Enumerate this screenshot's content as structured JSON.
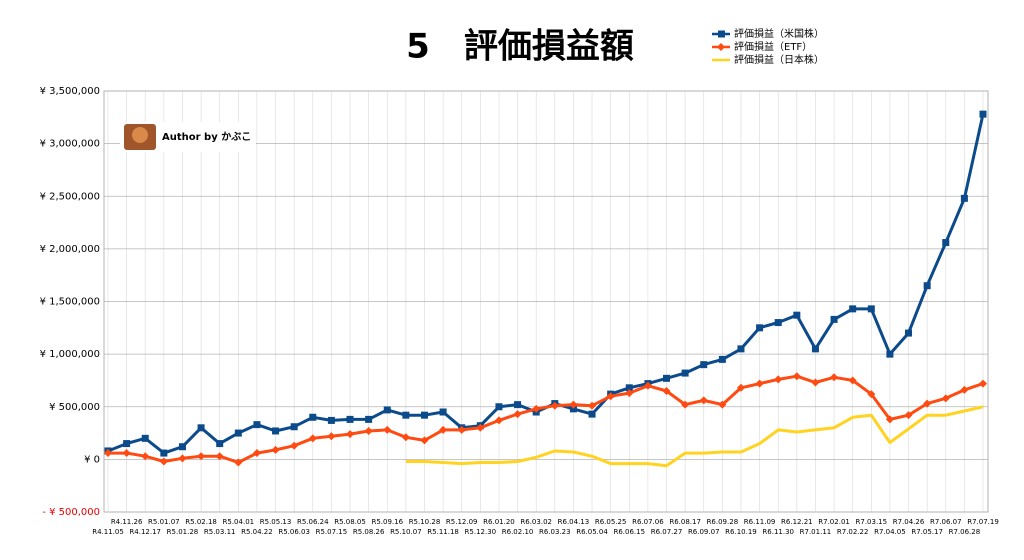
{
  "chart_data": {
    "type": "line",
    "title": "5　評価損益額",
    "author": "Author by かぶこ",
    "categories": [
      "R4.11.05",
      "R4.11.26",
      "R4.12.17",
      "R5.01.07",
      "R5.01.28",
      "R5.02.18",
      "R5.03.11",
      "R5.04.01",
      "R5.04.22",
      "R5.05.13",
      "R5.06.03",
      "R5.06.24",
      "R5.07.15",
      "R5.08.05",
      "R5.08.26",
      "R5.09.16",
      "R5.10.07",
      "R5.10.28",
      "R5.11.18",
      "R5.12.09",
      "R5.12.30",
      "R6.01.20",
      "R6.02.10",
      "R6.03.02",
      "R6.03.23",
      "R6.04.13",
      "R6.05.04",
      "R6.05.25",
      "R6.06.15",
      "R6.07.06",
      "R6.07.27",
      "R6.08.17",
      "R6.09.07",
      "R6.09.28",
      "R6.10.19",
      "R6.11.09",
      "R6.11.30",
      "R6.12.21",
      "R7.01.11",
      "R7.02.01",
      "R7.02.22",
      "R7.03.15",
      "R7.04.05",
      "R7.04.26",
      "R7.05.17",
      "R7.06.07",
      "R7.06.28",
      "R7.07.19"
    ],
    "series": [
      {
        "name": "評価損益（米国株）",
        "color": "#0b4a8b",
        "marker": "square",
        "values": [
          80000,
          150000,
          200000,
          60000,
          120000,
          300000,
          150000,
          250000,
          330000,
          270000,
          310000,
          400000,
          370000,
          380000,
          380000,
          470000,
          420000,
          420000,
          450000,
          300000,
          320000,
          500000,
          520000,
          450000,
          530000,
          480000,
          430000,
          620000,
          680000,
          720000,
          770000,
          820000,
          900000,
          950000,
          1050000,
          1250000,
          1300000,
          1370000,
          1050000,
          1330000,
          1430000,
          1430000,
          1000000,
          1200000,
          1650000,
          2060000,
          2480000,
          3280000
        ]
      },
      {
        "name": "評価損益（ETF）",
        "color": "#ff4a12",
        "marker": "diamond",
        "values": [
          60000,
          60000,
          30000,
          -20000,
          10000,
          30000,
          30000,
          -30000,
          60000,
          90000,
          130000,
          200000,
          220000,
          240000,
          270000,
          280000,
          210000,
          180000,
          280000,
          280000,
          300000,
          370000,
          430000,
          480000,
          510000,
          520000,
          510000,
          600000,
          630000,
          700000,
          650000,
          520000,
          560000,
          520000,
          680000,
          720000,
          760000,
          790000,
          730000,
          780000,
          750000,
          620000,
          380000,
          420000,
          530000,
          580000,
          660000,
          720000
        ]
      },
      {
        "name": "評価損益（日本株）",
        "color": "#ffd320",
        "marker": "none",
        "values": [
          null,
          null,
          null,
          null,
          null,
          null,
          null,
          null,
          null,
          null,
          null,
          null,
          null,
          null,
          null,
          null,
          -20000,
          -20000,
          -30000,
          -40000,
          -30000,
          -30000,
          -20000,
          20000,
          80000,
          70000,
          30000,
          -40000,
          -40000,
          -40000,
          -60000,
          60000,
          60000,
          70000,
          70000,
          150000,
          280000,
          260000,
          280000,
          300000,
          400000,
          420000,
          160000,
          290000,
          420000,
          420000,
          460000,
          500000
        ]
      }
    ],
    "ylim": [
      -500000,
      3500000
    ],
    "yticks": [
      {
        "value": -500000,
        "label": "- ¥ 500,000"
      },
      {
        "value": 0,
        "label": "¥ 0"
      },
      {
        "value": 500000,
        "label": "¥ 500,000"
      },
      {
        "value": 1000000,
        "label": "¥ 1,000,000"
      },
      {
        "value": 1500000,
        "label": "¥ 1,500,000"
      },
      {
        "value": 2000000,
        "label": "¥ 2,000,000"
      },
      {
        "value": 2500000,
        "label": "¥ 2,500,000"
      },
      {
        "value": 3000000,
        "label": "¥ 3,000,000"
      },
      {
        "value": 3500000,
        "label": "¥ 3,500,000"
      }
    ],
    "negative_label_color": "#ee0000",
    "grid": true,
    "legend": "top-right"
  }
}
